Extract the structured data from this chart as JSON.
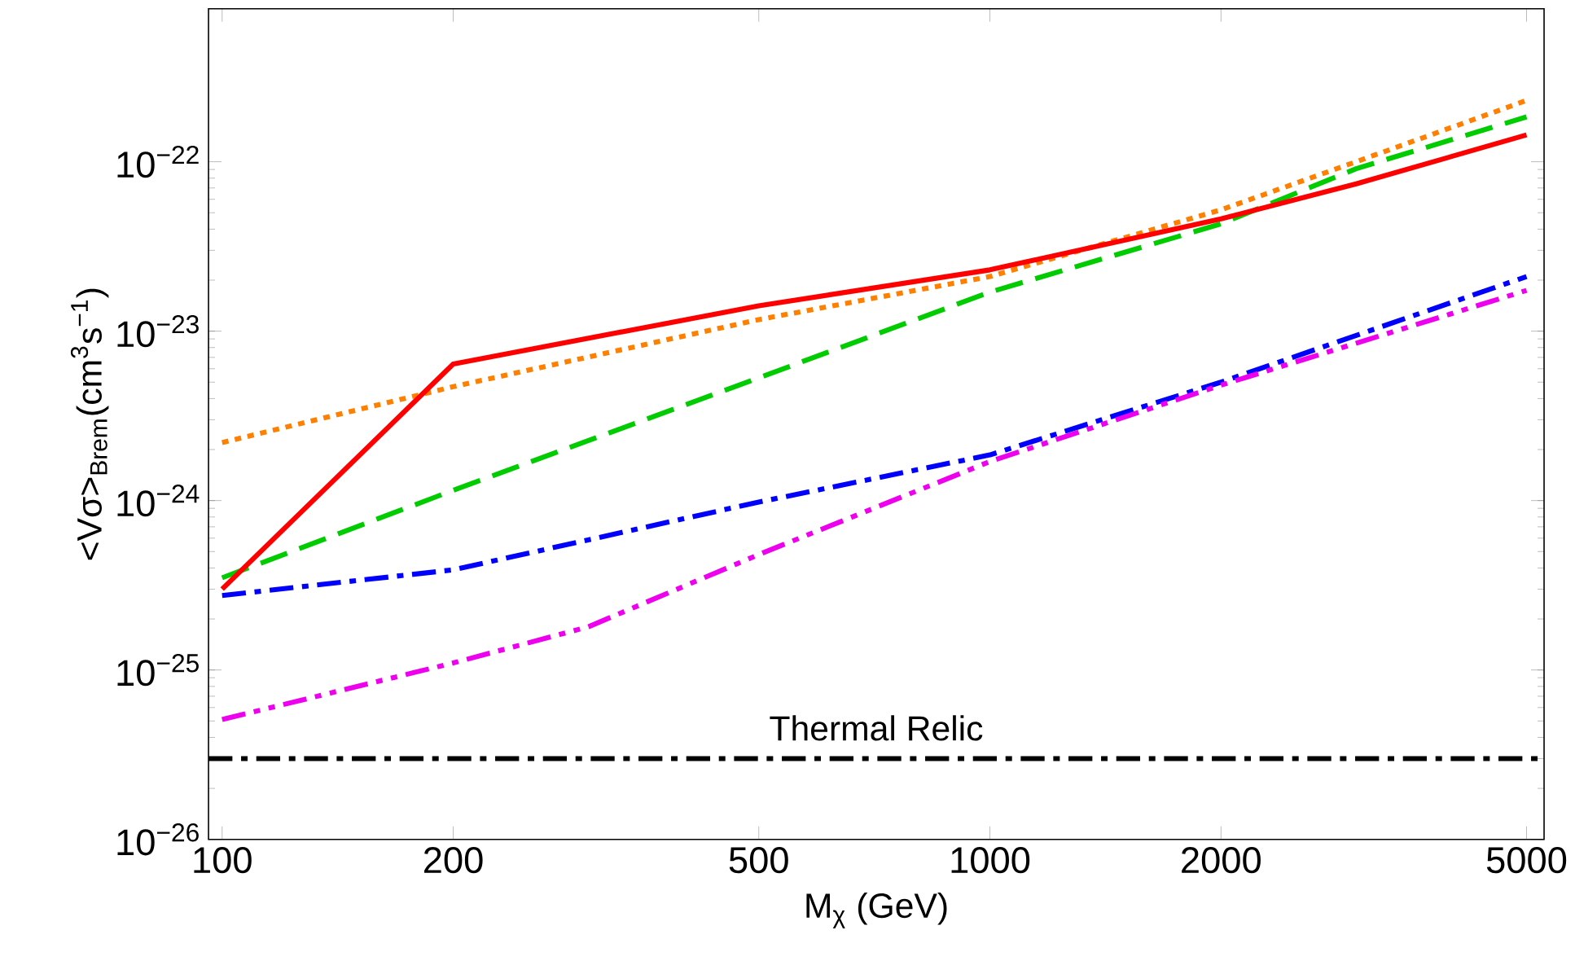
{
  "chart_data": {
    "type": "line",
    "xlabel": "M$_{χ}$ (GeV)",
    "ylabel": "<Vσ>$_{Brem}$(cm$^{3}$s$^{−1}$)",
    "log": "xy",
    "xlim": [
      96,
      5270
    ],
    "ylim": [
      1e-26,
      8e-22
    ],
    "xticks": [
      100,
      200,
      500,
      1000,
      2000,
      5000
    ],
    "yticks": [
      {
        "value": 1e-26,
        "label": "10$^{−26}$"
      },
      {
        "value": 1e-25,
        "label": "10$^{−25}$"
      },
      {
        "value": 1e-24,
        "label": "10$^{−24}$"
      },
      {
        "value": 1e-23,
        "label": "10$^{−23}$"
      },
      {
        "value": 1e-22,
        "label": "10$^{−22}$"
      }
    ],
    "grid": false,
    "marker": "none",
    "series": [
      {
        "color": "#ff8000",
        "line_style": "dotted",
        "x": [
          100,
          200,
          500,
          1000,
          2000,
          3000,
          5000
        ],
        "values": [
          2.2e-24,
          4.7e-24,
          1.17e-23,
          2.1e-23,
          5.2e-23,
          1e-22,
          2.3e-22
        ]
      },
      {
        "color": "#00cc00",
        "line_style": "dashed",
        "x": [
          100,
          200,
          500,
          1000,
          2000,
          3000,
          5000
        ],
        "values": [
          3.5e-25,
          1.15e-24,
          5.3e-24,
          1.7e-23,
          4.3e-23,
          9.1e-23,
          1.84e-22
        ]
      },
      {
        "color": "#ff0000",
        "line_style": "solid",
        "x": [
          100,
          200,
          500,
          1000,
          2000,
          3000,
          5000
        ],
        "values": [
          3e-25,
          6.4e-24,
          1.41e-23,
          2.3e-23,
          4.6e-23,
          7.4e-23,
          1.44e-22
        ]
      },
      {
        "color": "#0000ff",
        "line_style": "dashdot",
        "x": [
          100,
          200,
          500,
          1000,
          2000,
          5000
        ],
        "values": [
          2.75e-25,
          3.9e-25,
          9.8e-25,
          1.86e-24,
          5e-24,
          2.1e-23
        ]
      },
      {
        "color": "#ee00ee",
        "line_style": "dashdotdot",
        "x": [
          100,
          200,
          300,
          500,
          1000,
          2000,
          5000
        ],
        "values": [
          5.1e-26,
          1.1e-25,
          1.8e-25,
          4.8e-25,
          1.7e-24,
          4.8e-24,
          1.74e-23
        ]
      }
    ],
    "ref_lines": [
      {
        "axis": "y",
        "value": 3e-26,
        "label": "Thermal Relic",
        "color": "#000000",
        "line_style": "dashdot"
      }
    ]
  }
}
